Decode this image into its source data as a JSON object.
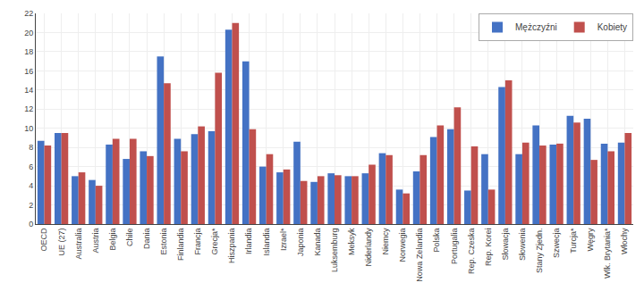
{
  "chart_data": {
    "type": "bar",
    "categories": [
      "OECD",
      "UE (27)",
      "Australia",
      "Austria",
      "Belgia",
      "Chile",
      "Dania",
      "Estonia",
      "Finlandia",
      "Francja",
      "Grecja*",
      "Hiszpania",
      "Irlandia",
      "Islandia",
      "Izrael*",
      "Japonia",
      "Kanada",
      "Luksemburg",
      "Meksyk",
      "Niderlandy",
      "Niemcy",
      "Norwegia",
      "Nowa Zelandia",
      "Polska",
      "Portugalia",
      "Rep. Czeska",
      "Rep. Korei",
      "Słowacja",
      "Słowenia",
      "Stany Zjedn.",
      "Szwecja",
      "Turcja*",
      "Węgry",
      "Wlk. Brytania*",
      "Włochy"
    ],
    "series": [
      {
        "name": "Mężczyźni",
        "color": "#4472C4",
        "values": [
          8.7,
          9.5,
          5.0,
          4.6,
          8.3,
          6.8,
          7.6,
          17.5,
          8.9,
          9.4,
          9.7,
          20.3,
          17.0,
          6.0,
          5.4,
          8.6,
          4.4,
          5.3,
          5.0,
          5.3,
          7.4,
          3.6,
          5.5,
          9.1,
          9.9,
          3.5,
          7.3,
          14.3,
          7.3,
          10.3,
          8.3,
          11.3,
          11.0,
          8.4,
          8.5
        ]
      },
      {
        "name": "Kobiety",
        "color": "#C0504D",
        "values": [
          8.2,
          9.5,
          5.4,
          4.0,
          8.9,
          8.9,
          7.1,
          14.7,
          7.6,
          10.2,
          15.8,
          21.0,
          9.9,
          7.3,
          5.7,
          4.5,
          5.0,
          5.1,
          5.0,
          6.2,
          7.2,
          3.2,
          7.2,
          10.3,
          12.2,
          8.1,
          3.6,
          15.0,
          8.5,
          8.2,
          8.4,
          10.6,
          6.7,
          7.6,
          9.5
        ]
      }
    ],
    "ylim": [
      0,
      22
    ],
    "yticks": [
      0,
      2,
      4,
      6,
      8,
      10,
      12,
      14,
      16,
      18,
      20,
      22
    ],
    "grid": true,
    "legend": "upper right"
  }
}
